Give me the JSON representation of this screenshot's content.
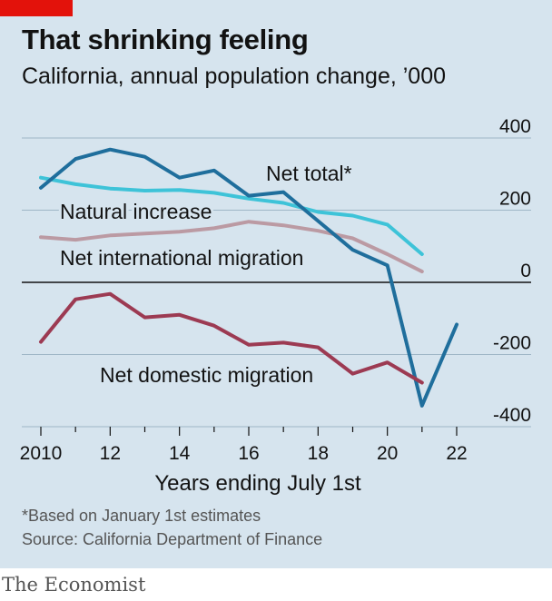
{
  "title": "That shrinking feeling",
  "subtitle": "California, annual population change, ’000",
  "footnote": "*Based on January 1st estimates",
  "source": "Source: California Department of Finance",
  "brand": "The Economist",
  "chart_data": {
    "type": "line",
    "xlabel": "Years ending July 1st",
    "ylabel": "",
    "xlim": [
      2010,
      2022
    ],
    "ylim": [
      -400,
      400
    ],
    "x_ticks": [
      2010,
      2012,
      2014,
      2016,
      2018,
      2020,
      2022
    ],
    "x_tick_labels": [
      "2010",
      "12",
      "14",
      "16",
      "18",
      "20",
      "22"
    ],
    "y_ticks": [
      -400,
      -200,
      0,
      200,
      400
    ],
    "y_tick_labels": [
      "-400",
      "-200",
      "0",
      "200",
      "400"
    ],
    "grid": "horizontal",
    "legend": "inline labels",
    "series": [
      {
        "name": "Natural increase",
        "color": "#3ec3d8",
        "x": [
          2010,
          2011,
          2012,
          2013,
          2014,
          2015,
          2016,
          2017,
          2018,
          2019,
          2020,
          2021
        ],
        "values": [
          290,
          272,
          260,
          254,
          256,
          248,
          232,
          220,
          195,
          185,
          160,
          78
        ]
      },
      {
        "name": "Net international migration",
        "color": "#bb9aa3",
        "x": [
          2010,
          2011,
          2012,
          2013,
          2014,
          2015,
          2016,
          2017,
          2018,
          2019,
          2020,
          2021
        ],
        "values": [
          125,
          118,
          130,
          135,
          140,
          150,
          168,
          158,
          143,
          122,
          78,
          30
        ]
      },
      {
        "name": "Net total*",
        "color": "#1f6e9c",
        "x": [
          2010,
          2011,
          2012,
          2013,
          2014,
          2015,
          2016,
          2017,
          2018,
          2019,
          2020,
          2021,
          2022
        ],
        "values": [
          262,
          342,
          368,
          348,
          290,
          310,
          240,
          250,
          170,
          90,
          47,
          -342,
          -117
        ]
      },
      {
        "name": "Net domestic migration",
        "color": "#9c3a52",
        "x": [
          2010,
          2011,
          2012,
          2013,
          2014,
          2015,
          2016,
          2017,
          2018,
          2019,
          2020,
          2021
        ],
        "values": [
          -165,
          -47,
          -32,
          -97,
          -90,
          -120,
          -173,
          -167,
          -180,
          -253,
          -222,
          -278
        ]
      }
    ]
  }
}
